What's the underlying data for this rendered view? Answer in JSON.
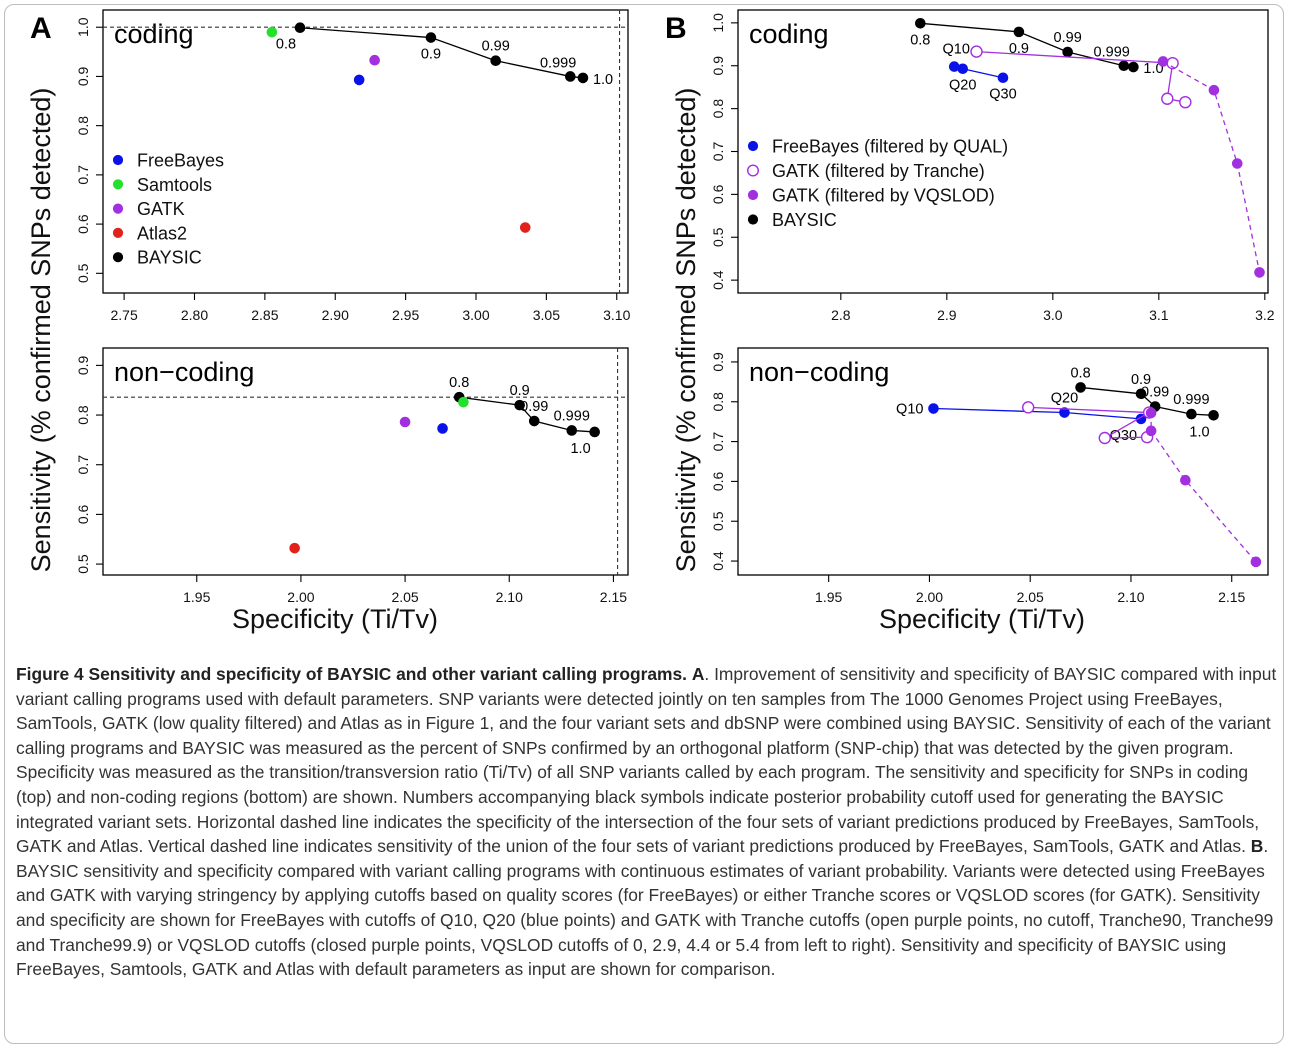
{
  "figure": {
    "y_axis_label": "Sensitivity (% confirmed SNPs detected)",
    "x_axis_label": "Specificity (Ti/Tv)"
  },
  "colors": {
    "FreeBayes": "#0a12e8",
    "Samtools": "#22e12a",
    "GATK": "#a22fe0",
    "Atlas2": "#e3211c",
    "BAYSIC": "#000000"
  },
  "chart_data": [
    {
      "panel": "A",
      "region": "coding",
      "type": "scatter",
      "xlim": [
        2.735,
        3.108
      ],
      "ylim": [
        0.46,
        1.035
      ],
      "xticks": [
        "2.75",
        "2.80",
        "2.85",
        "2.90",
        "2.95",
        "3.00",
        "3.05",
        "3.10"
      ],
      "yticks": [
        "0.5",
        "0.6",
        "0.7",
        "0.8",
        "0.9",
        "1.0"
      ],
      "hline": 1.0,
      "vline": 3.102,
      "legend": [
        {
          "label": "FreeBayes",
          "color": "#0a12e8"
        },
        {
          "label": "Samtools",
          "color": "#22e12a"
        },
        {
          "label": "GATK",
          "color": "#a22fe0"
        },
        {
          "label": "Atlas2",
          "color": "#e3211c"
        },
        {
          "label": "BAYSIC",
          "color": "#000000"
        }
      ],
      "series": [
        {
          "name": "BAYSIC",
          "color": "#000000",
          "line": "solid",
          "open": false,
          "points": [
            [
              2.875,
              0.999
            ],
            [
              2.968,
              0.979
            ],
            [
              3.014,
              0.932
            ],
            [
              3.067,
              0.9
            ],
            [
              3.076,
              0.897
            ]
          ],
          "labels": [
            {
              "text": "0.8",
              "i": 0,
              "pos": "bl"
            },
            {
              "text": "0.9",
              "i": 1,
              "pos": "b"
            },
            {
              "text": "0.99",
              "i": 2,
              "pos": "t"
            },
            {
              "text": "0.999",
              "i": 3,
              "pos": "tl"
            },
            {
              "text": "1.0",
              "i": 4,
              "pos": "r"
            }
          ]
        },
        {
          "name": "FreeBayes",
          "color": "#0a12e8",
          "line": "none",
          "open": false,
          "points": [
            [
              2.917,
              0.893
            ]
          ]
        },
        {
          "name": "Samtools",
          "color": "#22e12a",
          "line": "none",
          "open": false,
          "points": [
            [
              2.855,
              0.99
            ]
          ]
        },
        {
          "name": "GATK",
          "color": "#a22fe0",
          "line": "none",
          "open": false,
          "points": [
            [
              2.928,
              0.933
            ]
          ]
        },
        {
          "name": "Atlas2",
          "color": "#e3211c",
          "line": "none",
          "open": false,
          "points": [
            [
              3.035,
              0.593
            ]
          ]
        }
      ]
    },
    {
      "panel": "",
      "region": "non−coding",
      "type": "scatter",
      "xlim": [
        1.905,
        2.157
      ],
      "ylim": [
        0.478,
        0.935
      ],
      "xticks": [
        "1.95",
        "2.00",
        "2.05",
        "2.10",
        "2.15"
      ],
      "yticks": [
        "0.5",
        "0.6",
        "0.7",
        "0.8",
        "0.9"
      ],
      "hline": 0.836,
      "vline": 2.152,
      "legend": [],
      "series": [
        {
          "name": "BAYSIC",
          "color": "#000000",
          "line": "solid",
          "open": false,
          "points": [
            [
              2.076,
              0.836
            ],
            [
              2.105,
              0.82
            ],
            [
              2.112,
              0.788
            ],
            [
              2.13,
              0.769
            ],
            [
              2.141,
              0.766
            ]
          ],
          "labels": [
            {
              "text": "0.8",
              "i": 0,
              "pos": "t"
            },
            {
              "text": "0.9",
              "i": 1,
              "pos": "t"
            },
            {
              "text": "0.99",
              "i": 2,
              "pos": "t"
            },
            {
              "text": "0.999",
              "i": 3,
              "pos": "t"
            },
            {
              "text": "1.0",
              "i": 4,
              "pos": "bl"
            }
          ]
        },
        {
          "name": "FreeBayes",
          "color": "#0a12e8",
          "line": "none",
          "open": false,
          "points": [
            [
              2.068,
              0.773
            ]
          ]
        },
        {
          "name": "Samtools",
          "color": "#22e12a",
          "line": "none",
          "open": false,
          "points": [
            [
              2.078,
              0.826
            ]
          ]
        },
        {
          "name": "GATK",
          "color": "#a22fe0",
          "line": "none",
          "open": false,
          "points": [
            [
              2.05,
              0.786
            ]
          ]
        },
        {
          "name": "Atlas2",
          "color": "#e3211c",
          "line": "none",
          "open": false,
          "points": [
            [
              1.997,
              0.532
            ]
          ]
        }
      ]
    },
    {
      "panel": "B",
      "region": "coding",
      "type": "scatter",
      "xlim": [
        2.703,
        3.203
      ],
      "ylim": [
        0.37,
        1.03
      ],
      "xticks": [
        "2.8",
        "2.9",
        "3.0",
        "3.1",
        "3.2"
      ],
      "yticks": [
        "0.4",
        "0.5",
        "0.6",
        "0.7",
        "0.8",
        "0.9",
        "1.0"
      ],
      "legend": [
        {
          "label": "FreeBayes (filtered by QUAL)",
          "color": "#0a12e8",
          "open": false
        },
        {
          "label": "GATK (filtered by Tranche)",
          "color": "#a22fe0",
          "open": true
        },
        {
          "label": "GATK (filtered by VQSLOD)",
          "color": "#a22fe0",
          "open": false
        },
        {
          "label": "BAYSIC",
          "color": "#000000",
          "open": false
        }
      ],
      "series": [
        {
          "name": "BAYSIC",
          "color": "#000000",
          "line": "solid",
          "open": false,
          "points": [
            [
              2.875,
              0.999
            ],
            [
              2.968,
              0.979
            ],
            [
              3.014,
              0.932
            ],
            [
              3.067,
              0.9
            ],
            [
              3.076,
              0.897
            ]
          ],
          "labels": [
            {
              "text": "0.8",
              "i": 0,
              "pos": "b"
            },
            {
              "text": "0.9",
              "i": 1,
              "pos": "b"
            },
            {
              "text": "0.99",
              "i": 2,
              "pos": "t"
            },
            {
              "text": "0.999",
              "i": 3,
              "pos": "tl"
            },
            {
              "text": "1.0",
              "i": 4,
              "pos": "r"
            }
          ]
        },
        {
          "name": "FreeBayes (filtered by QUAL)",
          "color": "#0a12e8",
          "line": "solid",
          "open": false,
          "points": [
            [
              2.907,
              0.898
            ],
            [
              2.915,
              0.893
            ],
            [
              2.953,
              0.872
            ]
          ],
          "labels": [
            {
              "text": "Q10",
              "i": 0,
              "pos": "qt"
            },
            {
              "text": "Q20",
              "i": 1,
              "pos": "b"
            },
            {
              "text": "Q30",
              "i": 2,
              "pos": "b"
            }
          ]
        },
        {
          "name": "GATK (filtered by Tranche)",
          "color": "#a22fe0",
          "line": "solid",
          "open": true,
          "points": [
            [
              2.928,
              0.933
            ],
            [
              3.113,
              0.906
            ],
            [
              3.108,
              0.823
            ],
            [
              3.125,
              0.815
            ]
          ]
        },
        {
          "name": "GATK (filtered by VQSLOD)",
          "color": "#a22fe0",
          "line": "dashed",
          "open": false,
          "points": [
            [
              3.104,
              0.91
            ],
            [
              3.152,
              0.843
            ],
            [
              3.174,
              0.672
            ],
            [
              3.195,
              0.418
            ]
          ]
        }
      ]
    },
    {
      "panel": "",
      "region": "non−coding",
      "type": "scatter",
      "xlim": [
        1.905,
        2.168
      ],
      "ylim": [
        0.365,
        0.935
      ],
      "xticks": [
        "1.95",
        "2.00",
        "2.05",
        "2.10",
        "2.15"
      ],
      "yticks": [
        "0.4",
        "0.5",
        "0.6",
        "0.7",
        "0.8",
        "0.9"
      ],
      "legend": [],
      "series": [
        {
          "name": "BAYSIC",
          "color": "#000000",
          "line": "solid",
          "open": false,
          "points": [
            [
              2.075,
              0.836
            ],
            [
              2.105,
              0.82
            ],
            [
              2.112,
              0.788
            ],
            [
              2.13,
              0.769
            ],
            [
              2.141,
              0.766
            ]
          ],
          "labels": [
            {
              "text": "0.8",
              "i": 0,
              "pos": "t"
            },
            {
              "text": "0.9",
              "i": 1,
              "pos": "t"
            },
            {
              "text": "0.99",
              "i": 2,
              "pos": "t"
            },
            {
              "text": "0.999",
              "i": 3,
              "pos": "t"
            },
            {
              "text": "1.0",
              "i": 4,
              "pos": "bl"
            }
          ]
        },
        {
          "name": "FreeBayes (filtered by QUAL)",
          "color": "#0a12e8",
          "line": "solid",
          "open": false,
          "points": [
            [
              2.002,
              0.783
            ],
            [
              2.067,
              0.773
            ],
            [
              2.105,
              0.757
            ]
          ],
          "labels": [
            {
              "text": "Q10",
              "i": 0,
              "pos": "l"
            },
            {
              "text": "Q20",
              "i": 1,
              "pos": "t"
            },
            {
              "text": "Q30",
              "i": 2,
              "pos": "bl"
            }
          ]
        },
        {
          "name": "GATK (filtered by Tranche)",
          "color": "#a22fe0",
          "line": "solid",
          "open": true,
          "points": [
            [
              2.049,
              0.786
            ],
            [
              2.109,
              0.773
            ],
            [
              2.087,
              0.709
            ],
            [
              2.108,
              0.711
            ]
          ]
        },
        {
          "name": "GATK (filtered by VQSLOD)",
          "color": "#a22fe0",
          "line": "dashed",
          "open": false,
          "points": [
            [
              2.11,
              0.772
            ],
            [
              2.11,
              0.727
            ],
            [
              2.127,
              0.603
            ],
            [
              2.162,
              0.398
            ]
          ]
        }
      ]
    }
  ],
  "caption": {
    "title": "Figure 4 Sensitivity and specificity of BAYSIC and other variant calling programs.",
    "label_a": "A",
    "text_a": ". Improvement of sensitivity and specificity of BAYSIC compared with input variant calling programs used with default parameters. SNP variants were detected jointly on ten samples from The 1000 Genomes Project using FreeBayes, SamTools, GATK (low quality filtered) and Atlas as in Figure 1, and the four variant sets and dbSNP were combined using BAYSIC. Sensitivity of each of the variant calling programs and BAYSIC was measured as the percent of SNPs confirmed by an orthogonal platform (SNP-chip) that was detected by the given program. Specificity was measured as the transition/transversion ratio (Ti/Tv) of all SNP variants called by each program. The sensitivity and specificity for SNPs in coding (top) and non-coding regions (bottom) are shown. Numbers accompanying black symbols indicate posterior probability cutoff used for generating the BAYSIC integrated variant sets. Horizontal dashed line indicates the specificity of the intersection of the four sets of variant predictions produced by FreeBayes, SamTools, GATK and Atlas. Vertical dashed line indicates sensitivity of the union of the four sets of variant predictions produced by FreeBayes, SamTools, GATK and Atlas.",
    "label_b": "B",
    "text_b": ". BAYSIC sensitivity and specificity compared with variant calling programs with continuous estimates of variant probability. Variants were detected using FreeBayes and GATK with varying stringency by applying cutoffs based on quality scores (for FreeBayes) or either Tranche scores or VQSLOD scores (for GATK). Sensitivity and specificity are shown for FreeBayes with cutoffs of Q10, Q20 (blue points) and GATK with Tranche cutoffs (open purple points, no cutoff, Tranche90, Tranche99 and Tranche99.9) or VQSLOD cutoffs (closed purple points, VQSLOD cutoffs of 0, 2.9, 4.4 or 5.4 from left to right). Sensitivity and specificity of BAYSIC using FreeBayes, Samtools, GATK and Atlas with default parameters as input are shown for comparison."
  }
}
